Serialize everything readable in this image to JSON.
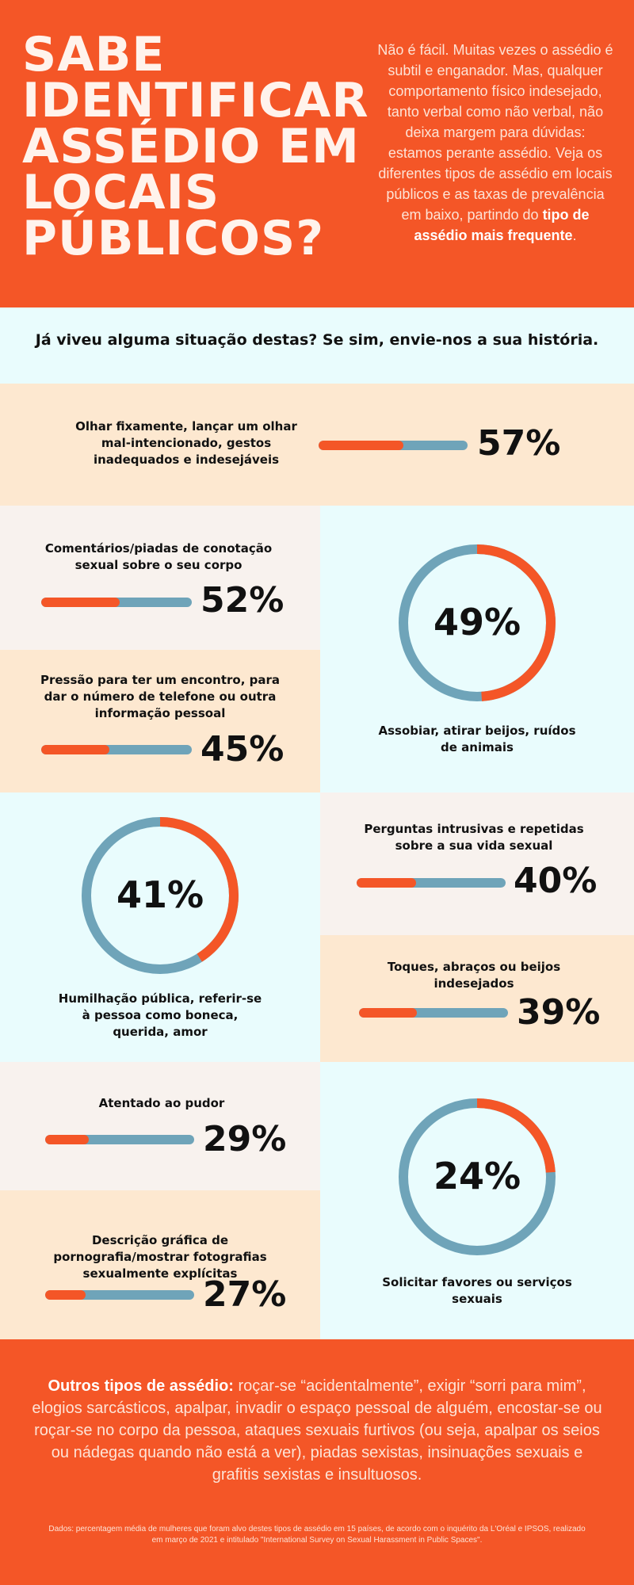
{
  "header": {
    "title_lines": [
      "SABE",
      "IDENTIFICAR",
      "ASSÉDIO EM",
      "LOCAIS",
      "PÚBLICOS?"
    ],
    "intro_text": "Não é fácil. Muitas vezes o assédio é subtil e enganador. Mas, qualquer comportamento físico indesejado, tanto verbal como não verbal, não deixa margem para dúvidas: estamos perante assédio. Veja os diferentes tipos de assédio em locais públicos e as taxas de prevalência em baixo, partindo do",
    "intro_bold": "tipo de assédio mais frequente",
    "intro_end": "."
  },
  "cta": "Já viveu alguma situação destas? Se sim, envie-nos a sua história.",
  "colors": {
    "accent": "#f45627",
    "track": "#6fa4b9",
    "peach": "#fde8d0",
    "cyan": "#e9fcfd",
    "cream": "#f8f2ee"
  },
  "chart_data": {
    "type": "bar",
    "categories": [
      "Olhar fixamente, lançar um olhar mal-intencionado, gestos inadequados e indesejáveis",
      "Comentários/piadas de conotação sexual sobre o seu corpo",
      "Assobiar, atirar beijos, ruídos de animais",
      "Pressão para ter um encontro, para dar o número de telefone ou outra informação pessoal",
      "Humilhação pública, referir-se à pessoa como boneca, querida, amor",
      "Perguntas intrusivas e repetidas sobre a sua vida sexual",
      "Toques, abraços ou beijos indesejados",
      "Atentado ao pudor",
      "Descrição gráfica de pornografia/mostrar fotografias sexualmente explícitas",
      "Solicitar favores ou serviços sexuais"
    ],
    "values": [
      57,
      52,
      49,
      45,
      41,
      40,
      39,
      29,
      27,
      24
    ],
    "value_labels": [
      "57%",
      "52%",
      "49%",
      "45%",
      "41%",
      "40%",
      "39%",
      "29%",
      "27%",
      "24%"
    ],
    "ylim": [
      0,
      100
    ]
  },
  "others": {
    "lead": "Outros tipos de assédio:",
    "text": " roçar-se “acidentalmente”, exigir “sorri para mim”, elogios sarcásticos, apalpar, invadir o espaço pessoal de alguém, encostar-se ou roçar-se no corpo da pessoa, ataques sexuais furtivos (ou seja, apalpar os seios ou nádegas quando não está a ver), piadas sexistas, insinuações sexuais e grafitis sexistas e insultuosos."
  },
  "source": "Dados: percentagem média de mulheres que foram alvo destes tipos de assédio em 15 países, de acordo com o inquérito da L'Oréal e IPSOS, realizado em março de 2021 e intitulado \"International Survey on Sexual Harassment in Public Spaces\"."
}
